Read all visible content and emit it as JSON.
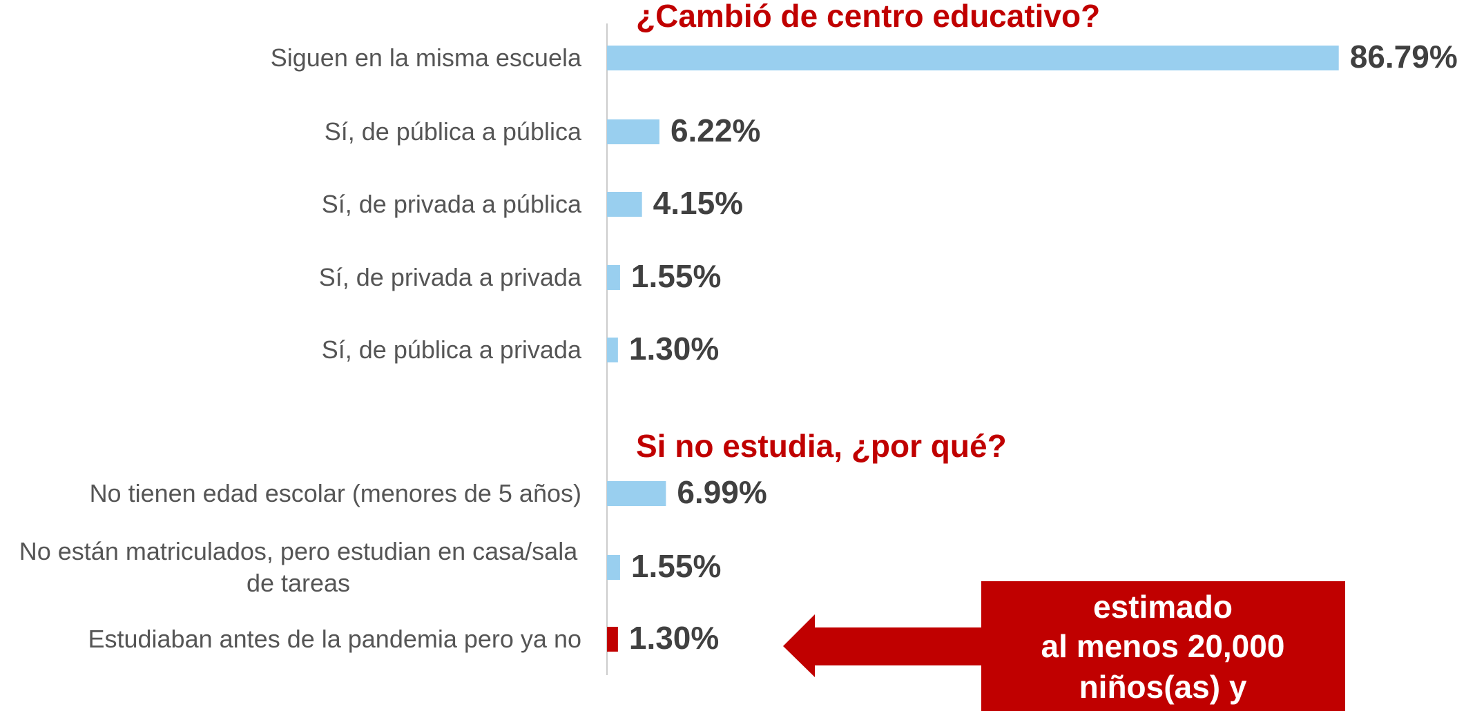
{
  "chart_data": [
    {
      "type": "bar",
      "orientation": "horizontal",
      "title": "¿Cambió de centro educativo?",
      "categories": [
        "Siguen en la misma escuela",
        "Sí, de pública a pública",
        "Sí, de privada a pública",
        "Sí, de privada a privada",
        "Sí, de pública a privada"
      ],
      "values": [
        86.79,
        6.22,
        4.15,
        1.55,
        1.3
      ],
      "value_labels": [
        "86.79%",
        "6.22%",
        "4.15%",
        "1.55%",
        "1.30%"
      ],
      "colors": [
        "#99cfef",
        "#99cfef",
        "#99cfef",
        "#99cfef",
        "#99cfef"
      ]
    },
    {
      "type": "bar",
      "orientation": "horizontal",
      "title": "Si no estudia, ¿por qué?",
      "categories": [
        "No tienen edad escolar (menores de 5 años)",
        "No están matriculados, pero estudian en casa/sala de tareas",
        "Estudiaban antes de la pandemia pero ya no"
      ],
      "values": [
        6.99,
        1.55,
        1.3
      ],
      "value_labels": [
        "6.99%",
        "1.55%",
        "1.30%"
      ],
      "colors": [
        "#99cfef",
        "#99cfef",
        "#c00000"
      ],
      "annotation": [
        "estimado",
        "al menos 20,000",
        "niños(as) y"
      ]
    }
  ]
}
